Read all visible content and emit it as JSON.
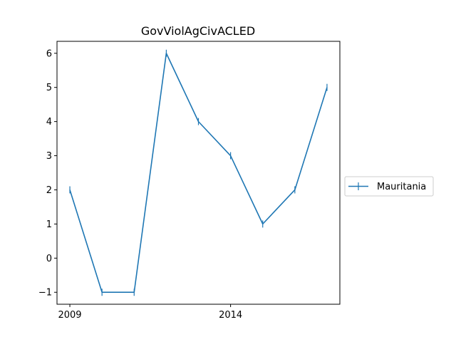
{
  "chart_data": {
    "type": "line",
    "title": "GovViolAgCivACLED",
    "xlabel": "",
    "ylabel": "",
    "x": [
      2009,
      2010,
      2011,
      2012,
      2013,
      2014,
      2015,
      2016,
      2017
    ],
    "series": [
      {
        "name": "Mauritania",
        "values": [
          2,
          -1,
          -1,
          6,
          4,
          3,
          1,
          2,
          5
        ],
        "color": "#1f77b4"
      }
    ],
    "xlim": [
      2008.6,
      2017.4
    ],
    "ylim": [
      -1.35,
      6.35
    ],
    "x_ticks": [
      2009,
      2014
    ],
    "y_ticks": [
      -1,
      0,
      1,
      2,
      3,
      4,
      5,
      6
    ],
    "grid": false,
    "legend_position": "center-right-outside"
  }
}
